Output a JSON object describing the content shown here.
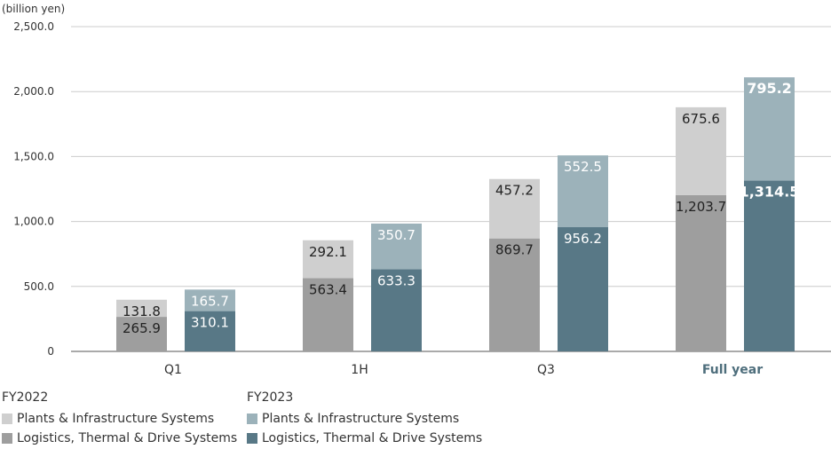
{
  "chart_data": {
    "type": "bar",
    "stacked": true,
    "unit_label": "(billion yen)",
    "categories": [
      "Q1",
      "1H",
      "Q3",
      "Full year"
    ],
    "highlight_category": "Full year",
    "yticks": [
      "0",
      "500.0",
      "1,000.0",
      "1,500.0",
      "2,000.0",
      "2,500.0"
    ],
    "ylim": [
      0,
      2500
    ],
    "grid": true,
    "legend_position": "bottom-left",
    "groups": [
      {
        "name": "FY2022",
        "series": [
          {
            "name": "Logistics, Thermal & Drive Systems",
            "color": "#9e9e9e",
            "values": [
              265.9,
              563.4,
              869.7,
              1203.7
            ],
            "labels": [
              "265.9",
              "563.4",
              "869.7",
              "1,203.7"
            ]
          },
          {
            "name": "Plants & Infrastructure Systems",
            "color": "#cfcfcf",
            "values": [
              131.8,
              292.1,
              457.2,
              675.6
            ],
            "labels": [
              "131.8",
              "292.1",
              "457.2",
              "675.6"
            ]
          }
        ]
      },
      {
        "name": "FY2023",
        "series": [
          {
            "name": "Logistics, Thermal & Drive Systems",
            "color": "#587886",
            "values": [
              310.1,
              633.3,
              956.2,
              1314.5
            ],
            "labels": [
              "310.1",
              "633.3",
              "956.2",
              "1,314.5"
            ]
          },
          {
            "name": "Plants & Infrastructure Systems",
            "color": "#9cb2ba",
            "values": [
              165.7,
              350.7,
              552.5,
              795.2
            ],
            "labels": [
              "165.7",
              "350.7",
              "552.5",
              "795.2"
            ]
          }
        ]
      }
    ]
  }
}
